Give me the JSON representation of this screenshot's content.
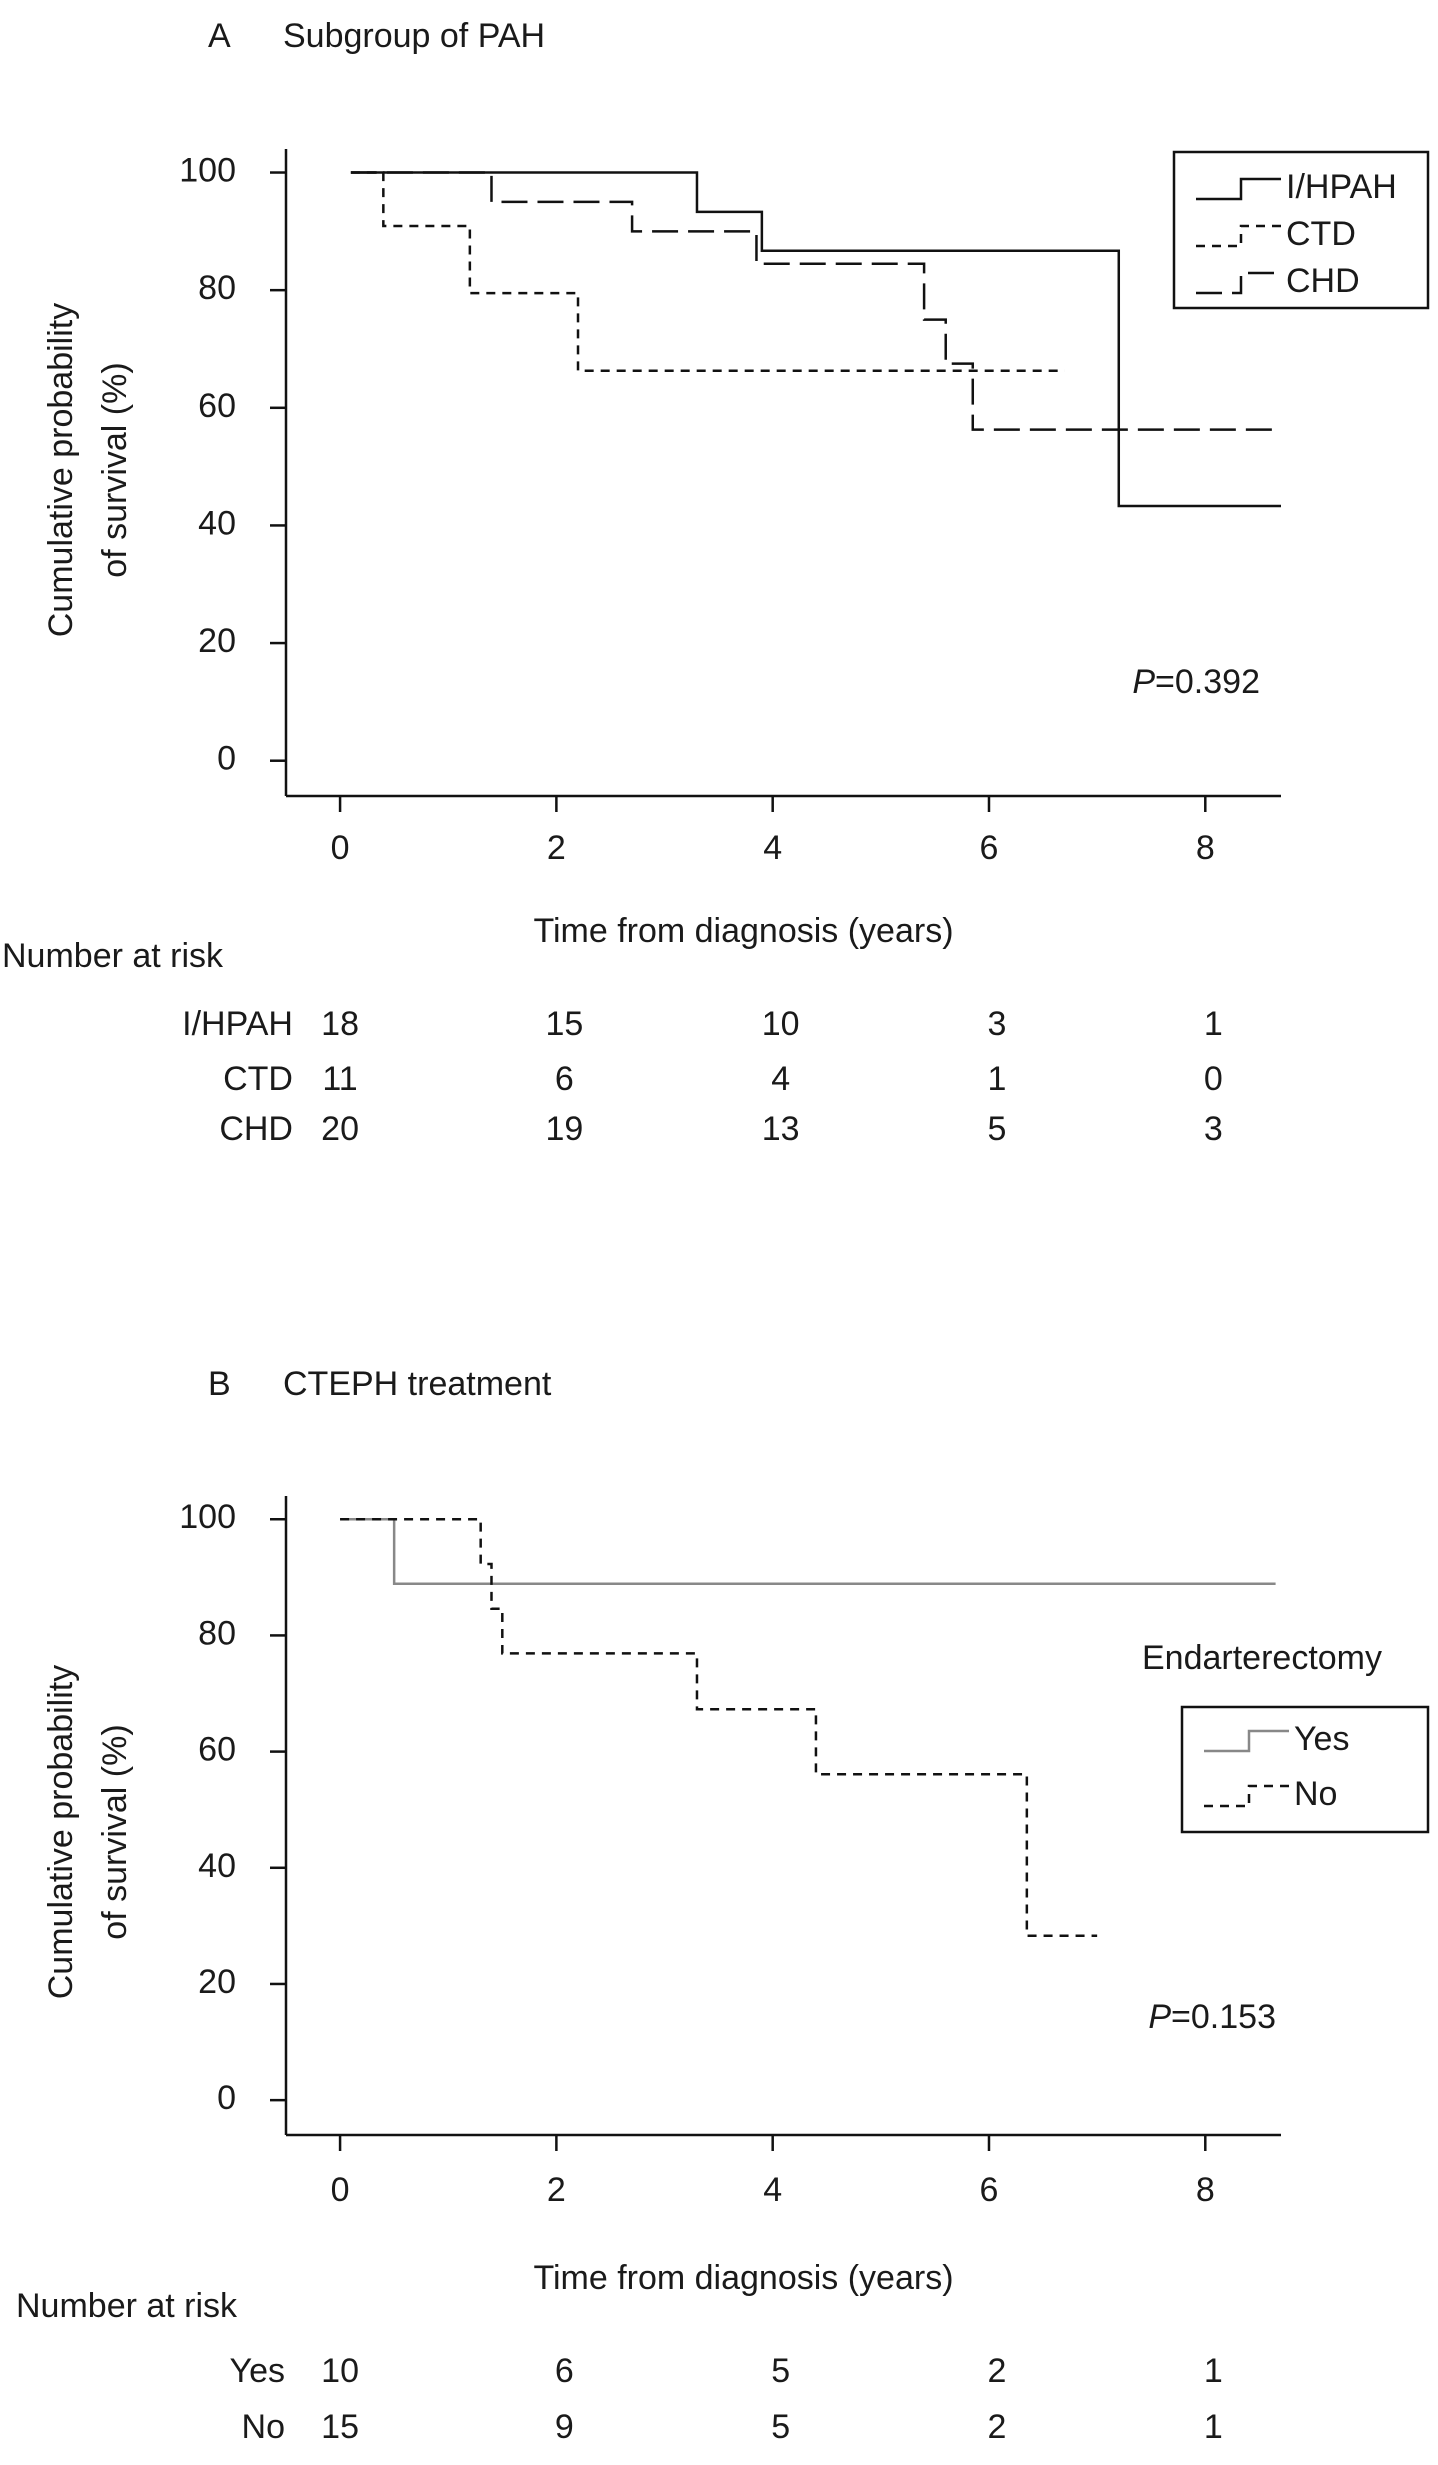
{
  "chart_data": [
    {
      "type": "step",
      "panel": "A",
      "title": "Subgroup of PAH",
      "xlabel": "Time from diagnosis (years)",
      "ylabel": [
        "Cumulative probability",
        "of survival (%)"
      ],
      "xlim": [
        -0.5,
        8.7
      ],
      "ylim": [
        -6,
        104
      ],
      "xticks": [
        0,
        2,
        4,
        6,
        8
      ],
      "yticks": [
        0,
        20,
        40,
        60,
        80,
        100
      ],
      "legend": "upper right",
      "annotation": "P=0.392",
      "series": [
        {
          "name": "I/HPAH",
          "color": "#111111",
          "dash": "solid",
          "x": [
            0.1,
            3.3,
            3.9,
            7.2,
            8.7
          ],
          "values": [
            100,
            93.3,
            86.7,
            43.3,
            43.3
          ]
        },
        {
          "name": "CTD",
          "color": "#111111",
          "dash": "short",
          "x": [
            0.1,
            0.4,
            1.2,
            2.2,
            6.7
          ],
          "values": [
            100,
            90.9,
            79.5,
            66.3,
            66.3
          ]
        },
        {
          "name": "CHD",
          "color": "#111111",
          "dash": "long",
          "x": [
            0.1,
            1.4,
            2.7,
            3.85,
            5.4,
            5.6,
            5.85,
            8.7
          ],
          "values": [
            100,
            95,
            90,
            84.5,
            75,
            67.5,
            56.3,
            56.3
          ]
        }
      ],
      "risk_table": {
        "title": "Number at risk",
        "rows": [
          {
            "name": "I/HPAH",
            "values": [
              18,
              15,
              10,
              3,
              1
            ]
          },
          {
            "name": "CTD",
            "values": [
              11,
              6,
              4,
              1,
              0
            ]
          },
          {
            "name": "CHD",
            "values": [
              20,
              19,
              13,
              5,
              3
            ]
          }
        ]
      }
    },
    {
      "type": "step",
      "panel": "B",
      "title": "CTEPH treatment",
      "xlabel": "Time from diagnosis (years)",
      "ylabel": [
        "Cumulative probability",
        "of survival (%)"
      ],
      "xlim": [
        -0.5,
        8.7
      ],
      "ylim": [
        -6,
        104
      ],
      "xticks": [
        0,
        2,
        4,
        6,
        8
      ],
      "yticks": [
        0,
        20,
        40,
        60,
        80,
        100
      ],
      "legend": "right",
      "legend_title": "Endarterectomy",
      "annotation": "P=0.153",
      "series": [
        {
          "name": "Yes",
          "color": "#888888",
          "dash": "solid",
          "x": [
            0,
            0.5,
            8.65
          ],
          "values": [
            100,
            88.9,
            88.9
          ]
        },
        {
          "name": "No",
          "color": "#111111",
          "dash": "short",
          "x": [
            0,
            1.3,
            1.4,
            1.5,
            1.7,
            3.3,
            4.4,
            6.35,
            7.0
          ],
          "values": [
            100,
            92.3,
            84.6,
            76.9,
            76.9,
            67.3,
            56.1,
            28.3,
            28.3
          ]
        }
      ],
      "risk_table": {
        "title": "Number at risk",
        "rows": [
          {
            "name": "Yes",
            "values": [
              10,
              6,
              5,
              2,
              1
            ]
          },
          {
            "name": "No",
            "values": [
              15,
              9,
              5,
              2,
              1
            ]
          }
        ]
      }
    }
  ]
}
